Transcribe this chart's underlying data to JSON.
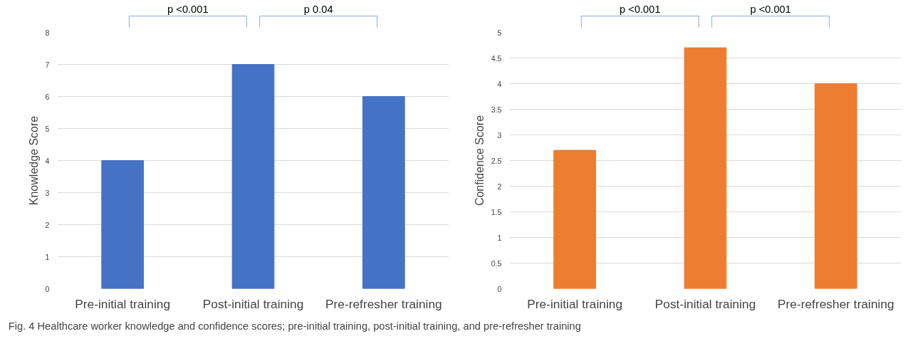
{
  "chart_data": [
    {
      "type": "bar",
      "categories": [
        "Pre-initial training",
        "Post-initial training",
        "Pre-refresher training"
      ],
      "values": [
        4,
        7,
        6
      ],
      "color": "#4472c4",
      "ylabel": "Knowledge Score",
      "ylim": [
        0,
        8
      ],
      "yticks": [
        0,
        1,
        2,
        3,
        4,
        5,
        6,
        7,
        8
      ],
      "grid": "y",
      "annotations": [
        "p <0.001",
        "p 0.04",
        "Fig. 4  Healthcare worker knowledge and confidence scores; pre-initial training, post-initial training, and pre-refresher training"
      ]
    },
    {
      "type": "bar",
      "categories": [
        "Pre-initial training",
        "Post-initial training",
        "Pre-refresher training"
      ],
      "values": [
        2.7,
        4.7,
        4
      ],
      "color": "#ed7d31",
      "ylabel": "Confidence Score",
      "ylim": [
        0,
        5
      ],
      "yticks": [
        0,
        0.5,
        1,
        1.5,
        2,
        2.5,
        3,
        3.5,
        4,
        4.5,
        5
      ],
      "grid": "y",
      "annotations": [
        "p <0.001",
        "p <0.001"
      ]
    }
  ]
}
